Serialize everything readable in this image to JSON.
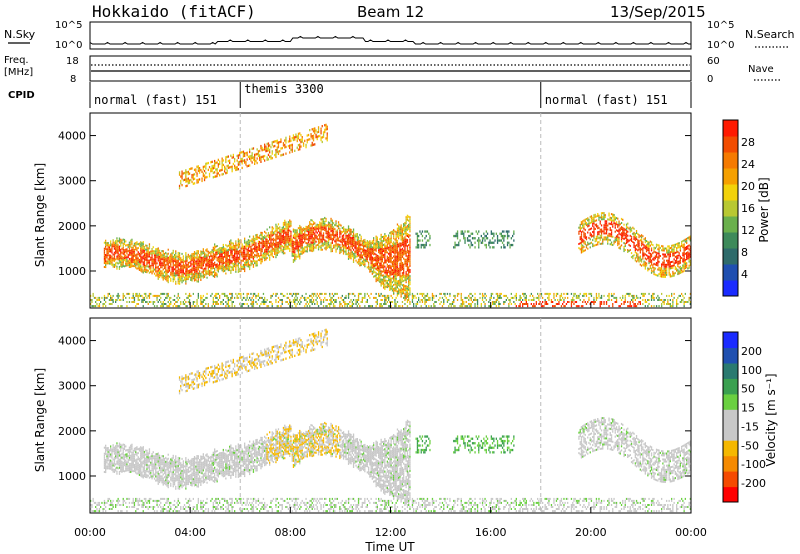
{
  "header": {
    "title": "Hokkaido (fitACF)",
    "beam": "Beam 12",
    "date": "13/Sep/2015"
  },
  "noise_panel": {
    "left_label": "N.Sky",
    "right_label": "N.Search",
    "left_ticks": [
      "10^5",
      "10^0"
    ],
    "right_ticks": [
      "10^5",
      "10^0"
    ]
  },
  "freq_panel": {
    "left_label_line1": "Freq.",
    "left_label_line2": "[MHz]",
    "right_label": "Nave",
    "left_ticks": [
      "18",
      "8"
    ],
    "right_ticks": [
      "60",
      "0"
    ]
  },
  "cpid_panel": {
    "label": "CPID",
    "modes": [
      {
        "name": "normal (fast) 151",
        "start_hour": 0,
        "end_hour": 6
      },
      {
        "name": "themis 3300",
        "start_hour": 6,
        "end_hour": 18
      },
      {
        "name": "normal (fast) 151",
        "start_hour": 18,
        "end_hour": 24
      }
    ]
  },
  "colors": {
    "power": [
      "#1a2bff",
      "#1f4fb0",
      "#2e6b6b",
      "#3d8a5a",
      "#6ab04c",
      "#b8c832",
      "#f2d20a",
      "#f5a000",
      "#f57a00",
      "#f24c00",
      "#ff1a00"
    ],
    "velocity": [
      "#ff0000",
      "#f54a00",
      "#f58a00",
      "#f5b800",
      "#c8c8c8",
      "#c8c8c8",
      "#6ad040",
      "#3aa050",
      "#2a7a70",
      "#2050b0",
      "#1a2bff"
    ]
  },
  "chart_data": [
    {
      "type": "heatmap",
      "title": "",
      "xlabel": "Time UT",
      "ylabel": "Slant Range [km]",
      "xlim": [
        0,
        24
      ],
      "ylim": [
        180,
        4500
      ],
      "x_ticks": [
        "00:00",
        "04:00",
        "08:00",
        "12:00",
        "16:00",
        "20:00",
        "00:00"
      ],
      "y_ticks": [
        "1000",
        "2000",
        "3000",
        "4000"
      ],
      "colorbar": {
        "label": "Power [dB]",
        "range": [
          0,
          32
        ],
        "ticks": [
          "4",
          "8",
          "12",
          "16",
          "20",
          "24",
          "28"
        ]
      },
      "features": [
        {
          "name": "main band",
          "hours": [
            0.5,
            12.8
          ],
          "range_km": [
            1000,
            2200
          ],
          "level": "20-30 dB"
        },
        {
          "name": "upper band",
          "hours": [
            3.5,
            9.5
          ],
          "range_km": [
            2700,
            4300
          ],
          "level": "12-24 dB"
        },
        {
          "name": "isolated echoes",
          "hours": [
            13,
            17
          ],
          "range_km": [
            1500,
            1900
          ],
          "level": "8-16 dB"
        },
        {
          "name": "evening band",
          "hours": [
            19.5,
            24
          ],
          "range_km": [
            1000,
            2500
          ],
          "level": "16-30 dB"
        },
        {
          "name": "ground scatter",
          "hours": [
            0,
            24
          ],
          "range_km": [
            180,
            500
          ],
          "level": "8-24 dB"
        }
      ]
    },
    {
      "type": "heatmap",
      "title": "",
      "xlabel": "Time UT",
      "ylabel": "Slant Range [km]",
      "xlim": [
        0,
        24
      ],
      "ylim": [
        180,
        4500
      ],
      "x_ticks": [
        "00:00",
        "04:00",
        "08:00",
        "12:00",
        "16:00",
        "20:00",
        "00:00"
      ],
      "y_ticks": [
        "1000",
        "2000",
        "3000",
        "4000"
      ],
      "colorbar": {
        "label": "Velocity [m s⁻¹]",
        "range": [
          -250,
          250
        ],
        "ticks": [
          "200",
          "100",
          "50",
          "15",
          "-15",
          "-50",
          "-100",
          "-200"
        ]
      },
      "features": [
        {
          "name": "main band",
          "hours": [
            0.5,
            12.8
          ],
          "range_km": [
            1000,
            2200
          ],
          "level": "-15 to 15 m/s, some -50"
        },
        {
          "name": "upper band",
          "hours": [
            3.5,
            9.5
          ],
          "range_km": [
            2700,
            4300
          ],
          "level": "-15 to -50 m/s"
        },
        {
          "name": "isolated echoes",
          "hours": [
            13,
            17
          ],
          "range_km": [
            1500,
            1900
          ],
          "level": "15 to 50 m/s"
        },
        {
          "name": "evening band",
          "hours": [
            19.5,
            24
          ],
          "range_km": [
            1000,
            2500
          ],
          "level": "-15 to 15 m/s"
        },
        {
          "name": "ground scatter",
          "hours": [
            0,
            24
          ],
          "range_km": [
            180,
            500
          ],
          "level": "-15 to 50 m/s"
        }
      ]
    }
  ]
}
